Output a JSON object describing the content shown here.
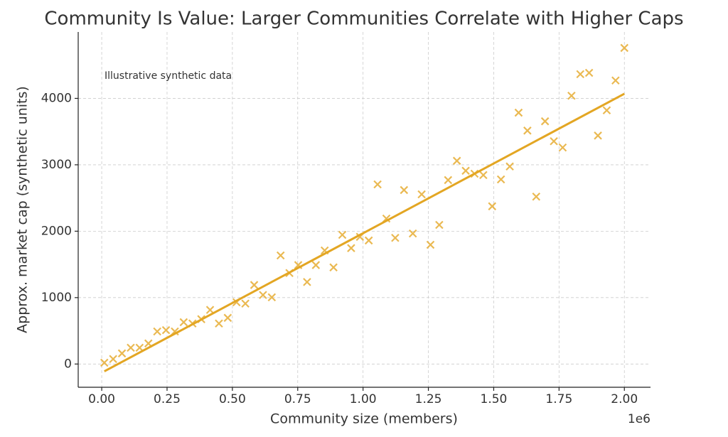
{
  "chart_data": {
    "type": "scatter",
    "title": "Community Is Value: Larger Communities Correlate with Higher Caps",
    "x_label": "Community size (members)",
    "y_label": "Approx. market cap (synthetic units)",
    "annotation": "Illustrative synthetic data",
    "x_offset_label": "1e6",
    "xlim": [
      -90000,
      2100000
    ],
    "ylim": [
      -350,
      5000
    ],
    "xticks": [
      {
        "value": 0,
        "label": "0.00"
      },
      {
        "value": 250000,
        "label": "0.25"
      },
      {
        "value": 500000,
        "label": "0.50"
      },
      {
        "value": 750000,
        "label": "0.75"
      },
      {
        "value": 1000000,
        "label": "1.00"
      },
      {
        "value": 1250000,
        "label": "1.25"
      },
      {
        "value": 1500000,
        "label": "1.50"
      },
      {
        "value": 1750000,
        "label": "1.75"
      },
      {
        "value": 2000000,
        "label": "2.00"
      }
    ],
    "yticks": [
      0,
      1000,
      2000,
      3000,
      4000
    ],
    "grid": true,
    "series": [
      {
        "type": "scatter",
        "color": "#e8b13f",
        "x": [
          10000,
          43729,
          77458,
          111186,
          144915,
          178644,
          212373,
          246102,
          279831,
          313559,
          347288,
          381017,
          414746,
          448475,
          482203,
          515932,
          549661,
          583390,
          617119,
          650847,
          684576,
          718305,
          752034,
          785763,
          819492,
          853220,
          886949,
          920678,
          954407,
          988136,
          1021864,
          1055593,
          1089322,
          1123051,
          1156780,
          1190508,
          1224237,
          1257966,
          1291695,
          1325424,
          1359153,
          1392881,
          1426610,
          1460339,
          1494068,
          1527797,
          1561525,
          1595254,
          1628983,
          1662712,
          1696441,
          1730169,
          1763898,
          1797627,
          1831356,
          1865085,
          1898814,
          1932542,
          1966271,
          2000000
        ],
        "values": [
          20,
          75,
          160,
          245,
          245,
          310,
          490,
          510,
          490,
          630,
          610,
          675,
          815,
          610,
          695,
          930,
          910,
          1190,
          1040,
          1005,
          1635,
          1370,
          1490,
          1235,
          1490,
          1710,
          1455,
          1945,
          1745,
          1915,
          1860,
          2705,
          2190,
          1900,
          2620,
          1965,
          2555,
          1795,
          2095,
          2770,
          3060,
          2910,
          2865,
          2845,
          2375,
          2780,
          2975,
          3785,
          3515,
          2520,
          3655,
          3355,
          3260,
          4040,
          4365,
          4385,
          3440,
          3820,
          4270,
          4760
        ]
      },
      {
        "type": "line",
        "color": "#e3a623",
        "x": [
          10000,
          2000000
        ],
        "values": [
          -110,
          4070
        ]
      }
    ]
  }
}
